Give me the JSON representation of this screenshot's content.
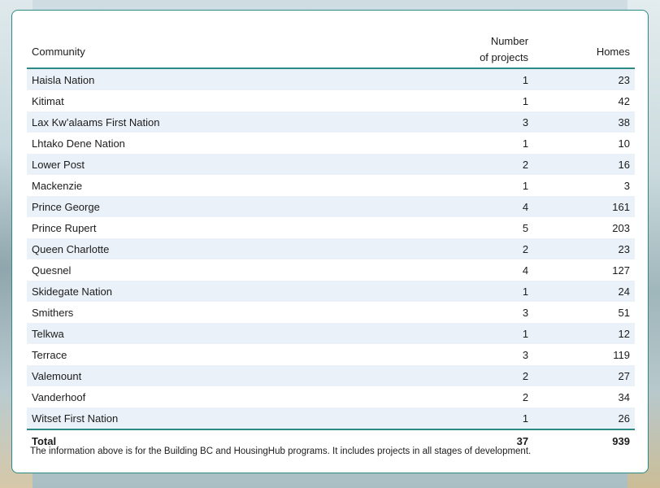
{
  "table": {
    "headers": {
      "community": "Community",
      "projects_line1": "Number",
      "projects_line2": "of projects",
      "homes": "Homes"
    },
    "rows": [
      {
        "community": "Haisla Nation",
        "projects": "1",
        "homes": "23"
      },
      {
        "community": "Kitimat",
        "projects": "1",
        "homes": "42"
      },
      {
        "community": "Lax Kw’alaams First Nation",
        "projects": "3",
        "homes": "38"
      },
      {
        "community": "Lhtako Dene Nation",
        "projects": "1",
        "homes": "10"
      },
      {
        "community": "Lower Post",
        "projects": "2",
        "homes": "16"
      },
      {
        "community": "Mackenzie",
        "projects": "1",
        "homes": "3"
      },
      {
        "community": "Prince George",
        "projects": "4",
        "homes": "161"
      },
      {
        "community": "Prince Rupert",
        "projects": "5",
        "homes": "203"
      },
      {
        "community": "Queen Charlotte",
        "projects": "2",
        "homes": "23"
      },
      {
        "community": "Quesnel",
        "projects": "4",
        "homes": "127"
      },
      {
        "community": "Skidegate Nation",
        "projects": "1",
        "homes": "24"
      },
      {
        "community": "Smithers",
        "projects": "3",
        "homes": "51"
      },
      {
        "community": "Telkwa",
        "projects": "1",
        "homes": "12"
      },
      {
        "community": "Terrace",
        "projects": "3",
        "homes": "119"
      },
      {
        "community": "Valemount",
        "projects": "2",
        "homes": "27"
      },
      {
        "community": "Vanderhoof",
        "projects": "2",
        "homes": "34"
      },
      {
        "community": "Witset First Nation",
        "projects": "1",
        "homes": "26"
      }
    ],
    "total": {
      "label": "Total",
      "projects": "37",
      "homes": "939"
    }
  },
  "note": "The information above is for the Building BC and HousingHub programs. It includes projects in all stages of development.",
  "colors": {
    "accent": "#2b8a83",
    "row_stripe": "#eaf1f8"
  }
}
